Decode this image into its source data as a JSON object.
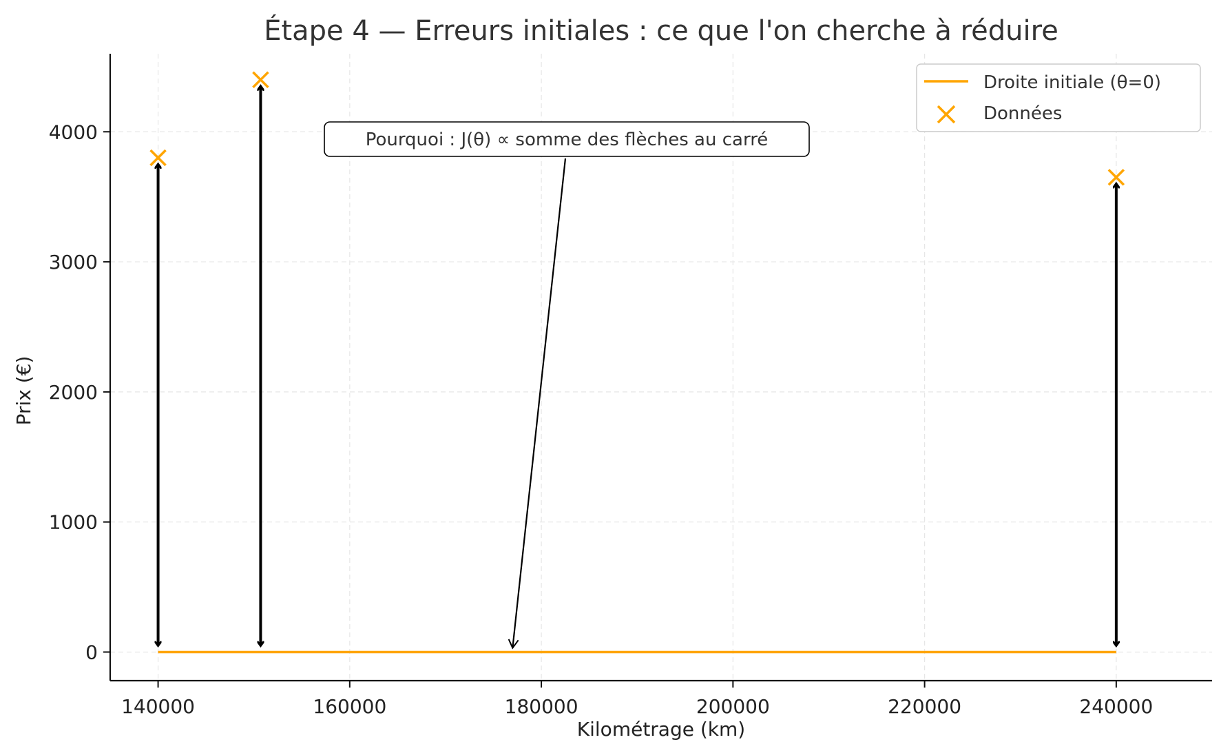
{
  "chart_data": {
    "type": "scatter",
    "title": "Étape 4 — Erreurs initiales : ce que l'on cherche à réduire",
    "xlabel": "Kilométrage (km)",
    "ylabel": "Prix (€)",
    "xlim": [
      135000,
      250000
    ],
    "ylim": [
      -220,
      4600
    ],
    "x_ticks": [
      140000,
      160000,
      180000,
      200000,
      220000,
      240000
    ],
    "y_ticks": [
      0,
      1000,
      2000,
      3000,
      4000
    ],
    "grid": true,
    "legend_position": "top-right",
    "series": [
      {
        "name": "Droite initiale (θ=0)",
        "kind": "line",
        "color": "#FFA500",
        "x": [
          140000,
          240000
        ],
        "y": [
          0,
          0
        ]
      },
      {
        "name": "Données",
        "kind": "scatter",
        "marker": "x",
        "color": "#FFA500",
        "x": [
          140000,
          150700,
          240000
        ],
        "y": [
          3800,
          4400,
          3650
        ]
      }
    ],
    "error_arrows": [
      {
        "x": 140000,
        "y_from": 3800,
        "y_to": 0
      },
      {
        "x": 150700,
        "y_from": 4400,
        "y_to": 0
      },
      {
        "x": 240000,
        "y_from": 3650,
        "y_to": 0
      }
    ],
    "annotation": {
      "text": "Pourquoi : J(θ) ∝ somme des flèches au carré",
      "text_x": 156500,
      "text_y": 3950,
      "arrow_to_x": 177000,
      "arrow_to_y": 0
    }
  }
}
